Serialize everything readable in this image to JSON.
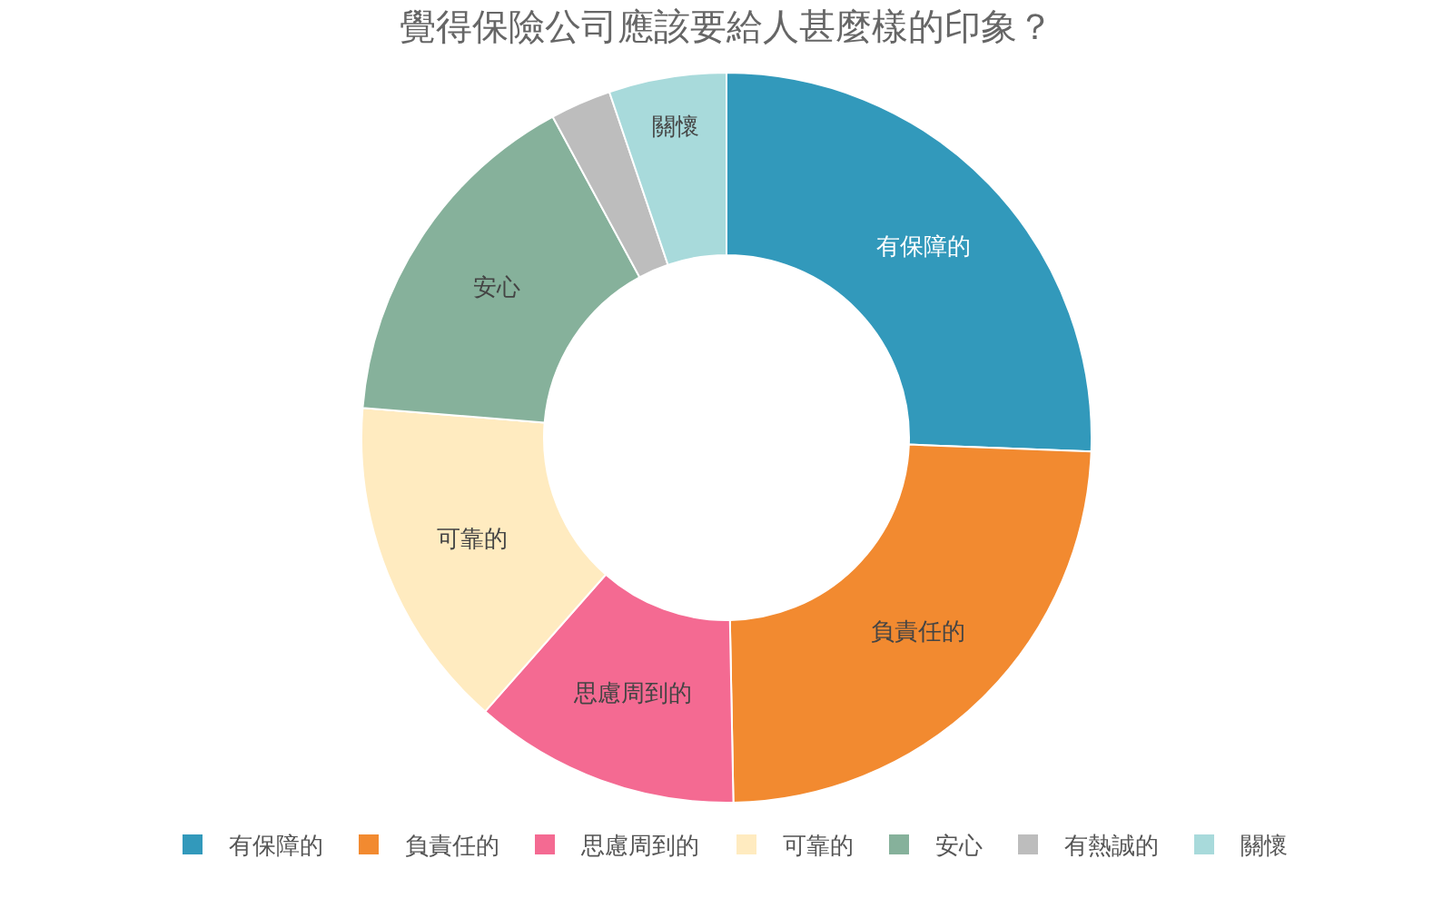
{
  "chart_data": {
    "type": "donut",
    "title": "覺得保險公司應該要給人甚麼樣的印象？",
    "categories": [
      "有保障的",
      "負責任的",
      "思慮周到的",
      "可靠的",
      "安心",
      "有熱誠的",
      "關懷"
    ],
    "values": [
      25.6,
      24.1,
      11.8,
      14.8,
      15.8,
      2.7,
      5.2
    ],
    "colors": [
      "#3299bb",
      "#f28a30",
      "#f46a92",
      "#ffebc0",
      "#86b19b",
      "#bdbdbd",
      "#a8dadb"
    ],
    "legend": "bottom"
  }
}
